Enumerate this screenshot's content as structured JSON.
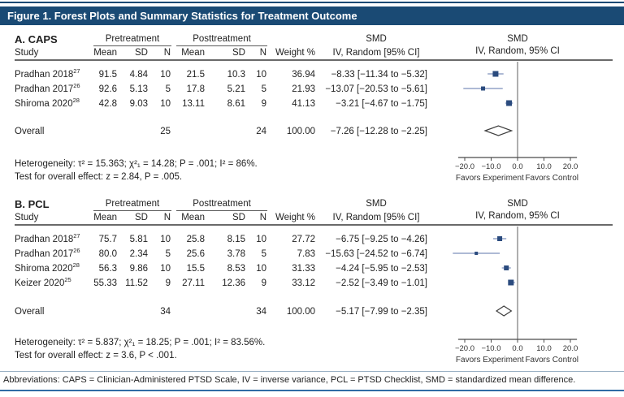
{
  "banner": {
    "title": "Figure 1. Forest Plots and Summary Statistics for Treatment Outcome"
  },
  "columns": {
    "study": "Study",
    "pre_group": "Pretreatment",
    "post_group": "Posttreatment",
    "mean": "Mean",
    "sd": "SD",
    "n": "N",
    "weight": "Weight %",
    "smd": "SMD",
    "smd_ci_text": "IV, Random [95% CI]",
    "smd_ci_plot": "IV, Random, 95% CI"
  },
  "axis": {
    "ticks": [
      "−20.0",
      "−10.0",
      "0.0",
      "10.0",
      "20.0"
    ],
    "tick_values": [
      -20,
      -10,
      0,
      10,
      20
    ],
    "favors_left": "Favors Experiment",
    "favors_right": "Favors Control"
  },
  "panels": [
    {
      "label": "A. CAPS",
      "rows": [
        {
          "study": "Pradhan 2018",
          "ref": "27",
          "pre_mean": "91.5",
          "pre_sd": "4.84",
          "pre_n": "10",
          "post_mean": "21.5",
          "post_sd": "10.3",
          "post_n": "10",
          "weight": "36.94",
          "smd": "−8.33 [−11.34 to −5.32]"
        },
        {
          "study": "Pradhan 2017",
          "ref": "26",
          "pre_mean": "92.6",
          "pre_sd": "5.13",
          "pre_n": "5",
          "post_mean": "17.8",
          "post_sd": "5.21",
          "post_n": "5",
          "weight": "21.93",
          "smd": "−13.07 [−20.53 to −5.61]"
        },
        {
          "study": "Shiroma 2020",
          "ref": "28",
          "pre_mean": "42.8",
          "pre_sd": "9.03",
          "pre_n": "10",
          "post_mean": "13.11",
          "post_sd": "8.61",
          "post_n": "9",
          "weight": "41.13",
          "smd": "−3.21 [−4.67 to −1.75]"
        }
      ],
      "overall": {
        "label": "Overall",
        "pre_n": "25",
        "post_n": "24",
        "weight": "100.00",
        "smd": "−7.26 [−12.28 to −2.25]"
      },
      "stats_line1": "Heterogeneity: τ² = 15.363; χ²₁ = 14.28; P = .001; I² = 86%.",
      "stats_line2": "Test for overall effect: z = 2.84, P = .005."
    },
    {
      "label": "B. PCL",
      "rows": [
        {
          "study": "Pradhan 2018",
          "ref": "27",
          "pre_mean": "75.7",
          "pre_sd": "5.81",
          "pre_n": "10",
          "post_mean": "25.8",
          "post_sd": "8.15",
          "post_n": "10",
          "weight": "27.72",
          "smd": "−6.75 [−9.25 to −4.26]"
        },
        {
          "study": "Pradhan 2017",
          "ref": "26",
          "pre_mean": "80.0",
          "pre_sd": "2.34",
          "pre_n": "5",
          "post_mean": "25.6",
          "post_sd": "3.78",
          "post_n": "5",
          "weight": "7.83",
          "smd": "−15.63 [−24.52 to −6.74]"
        },
        {
          "study": "Shiroma 2020",
          "ref": "28",
          "pre_mean": "56.3",
          "pre_sd": "9.86",
          "pre_n": "10",
          "post_mean": "15.5",
          "post_sd": "8.53",
          "post_n": "10",
          "weight": "31.33",
          "smd": "−4.24 [−5.95 to −2.53]"
        },
        {
          "study": "Keizer 2020",
          "ref": "25",
          "pre_mean": "55.33",
          "pre_sd": "11.52",
          "pre_n": "9",
          "post_mean": "27.11",
          "post_sd": "12.36",
          "post_n": "9",
          "weight": "33.12",
          "smd": "−2.52 [−3.49 to −1.01]"
        }
      ],
      "overall": {
        "label": "Overall",
        "pre_n": "34",
        "post_n": "34",
        "weight": "100.00",
        "smd": "−5.17 [−7.99 to −2.35]"
      },
      "stats_line1": "Heterogeneity: τ² = 5.837; χ²₁ = 18.25; P = .001; I² = 83.56%.",
      "stats_line2": "Test for overall effect: z = 3.6, P < .001."
    }
  ],
  "footer": {
    "abbreviations": "Abbreviations: CAPS = Clinician-Administered PTSD Scale, IV = inverse variance, PCL = PTSD Checklist, SMD = standardized mean difference."
  },
  "colors": {
    "banner": "#1a4a74",
    "marker": "#2b4b7e",
    "ci_line": "#93a3c7",
    "diamond_stroke": "#3f3f3f",
    "zero_line": "#5f5f5f",
    "axis": "#4a4a4a",
    "text": "#333333",
    "footer_line": "#2f6ba4"
  },
  "chart_data": [
    {
      "type": "scatter",
      "subtype": "forest",
      "title": "A. CAPS — SMD, IV, Random, 95% CI",
      "studies": [
        "Pradhan 2018",
        "Pradhan 2017",
        "Shiroma 2020"
      ],
      "estimates": [
        -8.33,
        -13.07,
        -3.21
      ],
      "ci_low": [
        -11.34,
        -20.53,
        -4.67
      ],
      "ci_high": [
        -5.32,
        -5.61,
        -1.75
      ],
      "weights_pct": [
        36.94,
        21.93,
        41.13
      ],
      "overall": {
        "estimate": -7.26,
        "ci_low": -12.28,
        "ci_high": -2.25,
        "weight_pct": 100.0
      },
      "xlim": [
        -25,
        25
      ],
      "xticks": [
        -20,
        -10,
        0,
        10,
        20
      ],
      "xlabel_left": "Favors Experiment",
      "xlabel_right": "Favors Control"
    },
    {
      "type": "scatter",
      "subtype": "forest",
      "title": "B. PCL — SMD, IV, Random, 95% CI",
      "studies": [
        "Pradhan 2018",
        "Pradhan 2017",
        "Shiroma 2020",
        "Keizer 2020"
      ],
      "estimates": [
        -6.75,
        -15.63,
        -4.24,
        -2.52
      ],
      "ci_low": [
        -9.25,
        -24.52,
        -5.95,
        -3.49
      ],
      "ci_high": [
        -4.26,
        -6.74,
        -2.53,
        -1.01
      ],
      "weights_pct": [
        27.72,
        7.83,
        31.33,
        33.12
      ],
      "overall": {
        "estimate": -5.17,
        "ci_low": -7.99,
        "ci_high": -2.35,
        "weight_pct": 100.0
      },
      "xlim": [
        -25,
        25
      ],
      "xticks": [
        -20,
        -10,
        0,
        10,
        20
      ],
      "xlabel_left": "Favors Experiment",
      "xlabel_right": "Favors Control"
    }
  ]
}
